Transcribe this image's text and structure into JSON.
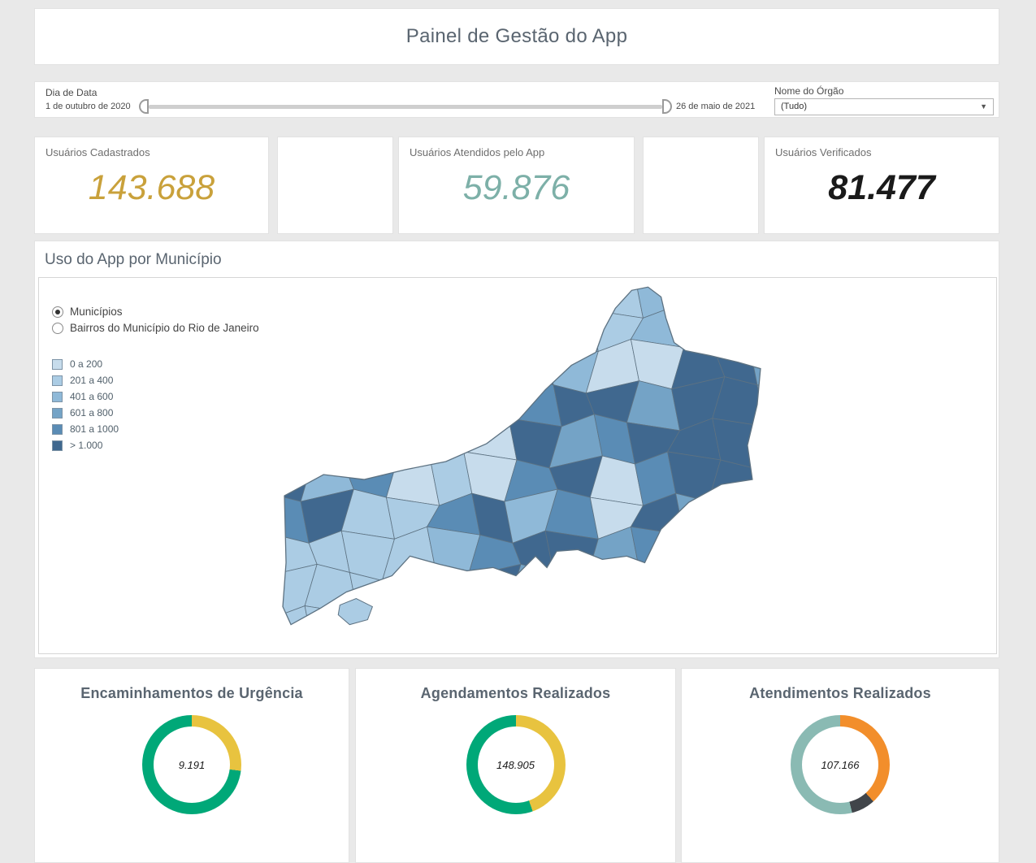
{
  "page": {
    "title": "Painel de Gestão do App"
  },
  "filters": {
    "date_label": "Dia de Data",
    "date_start": "1 de outubro de 2020",
    "date_end": "26 de maio de 2021",
    "organ_label": "Nome do Órgão",
    "organ_value": "(Tudo)",
    "organ_arrow": "▼"
  },
  "kpis": [
    {
      "label": "Usuários Cadastrados",
      "value": "143.688",
      "color": "#C9A13B"
    },
    {
      "label": "Usuários Atendidos pelo App",
      "value": "59.876",
      "color": "#7DB0A8"
    },
    {
      "label": "Usuários Verificados",
      "value": "81.477",
      "color": "#1A1A1A"
    }
  ],
  "map_section": {
    "title": "Uso do App por Município",
    "radio_options": [
      {
        "label": "Municípios",
        "selected": true
      },
      {
        "label": "Bairros do Município do Rio de Janeiro",
        "selected": false
      }
    ],
    "legend": [
      {
        "label": "0 a 200",
        "color": "#C7DCEC"
      },
      {
        "label": "201 a 400",
        "color": "#ABCCE4"
      },
      {
        "label": "401 a 600",
        "color": "#8FB9D8"
      },
      {
        "label": "601 a 800",
        "color": "#74A3C6"
      },
      {
        "label": "801 a 1000",
        "color": "#5A8CB5"
      },
      {
        "label": "> 1.000",
        "color": "#40688F"
      }
    ]
  },
  "chart_data": [
    {
      "type": "pie",
      "subtype": "donut",
      "title": "Encaminhamentos de Urgência",
      "center_label": "9.191",
      "segments": [
        {
          "color": "#E8C33F",
          "percent": 27
        },
        {
          "color": "#00A878",
          "percent": 73
        }
      ],
      "legend_position": "none"
    },
    {
      "type": "pie",
      "subtype": "donut",
      "title": "Agendamentos Realizados",
      "center_label": "148.905",
      "segments": [
        {
          "color": "#E8C33F",
          "percent": 44.5
        },
        {
          "color": "#00A878",
          "percent": 55.5
        }
      ],
      "legend_position": "none"
    },
    {
      "type": "pie",
      "subtype": "donut",
      "title": "Atendimentos Realizados",
      "center_label": "107.166",
      "segments": [
        {
          "color": "#F28E2B",
          "percent": 38.3
        },
        {
          "color": "#41454A",
          "percent": 7.8
        },
        {
          "color": "#8ABAB3",
          "percent": 53.9
        }
      ],
      "legend_position": "none"
    },
    {
      "type": "heatmap",
      "subtype": "choropleth",
      "title": "Uso do App por Município",
      "legend": [
        "0 a 200",
        "201 a 400",
        "401 a 600",
        "601 a 800",
        "801 a 1000",
        "> 1.000"
      ],
      "colors": [
        "#C7DCEC",
        "#ABCCE4",
        "#8FB9D8",
        "#74A3C6",
        "#5A8CB5",
        "#40688F"
      ],
      "legend_position": "left"
    }
  ]
}
